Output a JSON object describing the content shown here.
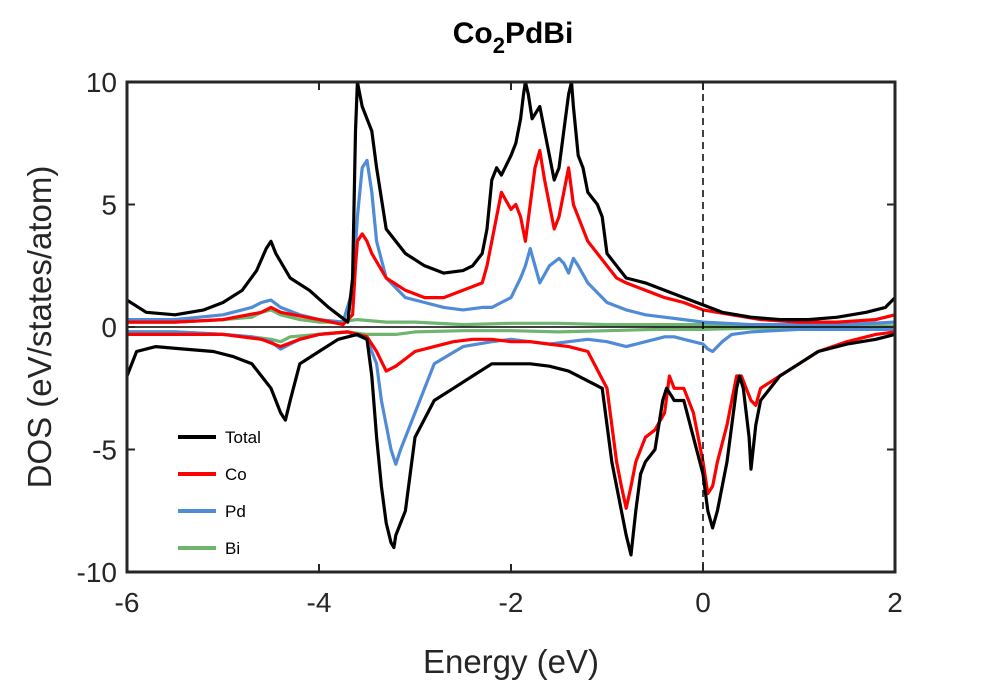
{
  "chart_data": {
    "type": "line",
    "title": {
      "main": "Co",
      "subscript": "2",
      "rest": "PdBi"
    },
    "xlabel": "Energy (eV)",
    "ylabel": "DOS (eV/states/atom)",
    "xlim": [
      -6,
      2
    ],
    "ylim": [
      -10,
      10
    ],
    "xticks": [
      -6,
      -4,
      -2,
      0,
      2
    ],
    "yticks": [
      -10,
      -5,
      0,
      5,
      10
    ],
    "xtick_labels": [
      "-6",
      "-4",
      "-2",
      "0",
      "2"
    ],
    "ytick_labels": [
      "-10",
      "-5",
      "0",
      "5",
      "10"
    ],
    "fermi_level": 0,
    "grid": false,
    "legend_position": "bottom-left",
    "series": [
      {
        "name": "Total",
        "color": "#000000",
        "up": {
          "x": [
            -6.0,
            -5.8,
            -5.5,
            -5.2,
            -5.0,
            -4.8,
            -4.65,
            -4.55,
            -4.5,
            -4.45,
            -4.3,
            -4.1,
            -3.9,
            -3.8,
            -3.7,
            -3.65,
            -3.62,
            -3.6,
            -3.55,
            -3.5,
            -3.45,
            -3.4,
            -3.3,
            -3.1,
            -2.9,
            -2.7,
            -2.5,
            -2.4,
            -2.3,
            -2.25,
            -2.2,
            -2.15,
            -2.1,
            -2.0,
            -1.95,
            -1.9,
            -1.87,
            -1.85,
            -1.82,
            -1.78,
            -1.7,
            -1.65,
            -1.6,
            -1.55,
            -1.5,
            -1.45,
            -1.4,
            -1.37,
            -1.35,
            -1.3,
            -1.25,
            -1.2,
            -1.1,
            -1.05,
            -1.0,
            -0.9,
            -0.8,
            -0.6,
            -0.4,
            -0.2,
            0.0,
            0.2,
            0.5,
            0.8,
            1.1,
            1.4,
            1.7,
            1.9,
            2.0
          ],
          "y": [
            1.1,
            0.6,
            0.5,
            0.7,
            1.0,
            1.5,
            2.3,
            3.2,
            3.5,
            3.0,
            2.0,
            1.5,
            0.8,
            0.5,
            0.2,
            2.0,
            8.0,
            10.0,
            9.0,
            8.5,
            8.0,
            6.5,
            4.0,
            3.0,
            2.5,
            2.2,
            2.3,
            2.5,
            3.0,
            4.0,
            6.0,
            6.5,
            6.2,
            7.0,
            7.5,
            8.5,
            9.5,
            10.0,
            9.5,
            8.5,
            9.0,
            8.0,
            7.0,
            6.0,
            6.5,
            8.0,
            9.5,
            10.0,
            9.0,
            7.0,
            6.5,
            5.5,
            5.0,
            4.5,
            3.0,
            2.5,
            2.0,
            1.8,
            1.5,
            1.2,
            0.9,
            0.6,
            0.4,
            0.3,
            0.3,
            0.4,
            0.6,
            0.8,
            1.2
          ]
        },
        "down": {
          "x": [
            -6.0,
            -5.9,
            -5.7,
            -5.4,
            -5.1,
            -4.9,
            -4.7,
            -4.6,
            -4.5,
            -4.45,
            -4.4,
            -4.35,
            -4.3,
            -4.2,
            -4.0,
            -3.8,
            -3.6,
            -3.5,
            -3.45,
            -3.4,
            -3.35,
            -3.3,
            -3.25,
            -3.22,
            -3.2,
            -3.15,
            -3.1,
            -3.05,
            -3.0,
            -2.8,
            -2.6,
            -2.4,
            -2.2,
            -2.0,
            -1.8,
            -1.6,
            -1.4,
            -1.2,
            -1.05,
            -1.0,
            -0.95,
            -0.9,
            -0.85,
            -0.8,
            -0.75,
            -0.7,
            -0.65,
            -0.6,
            -0.5,
            -0.42,
            -0.38,
            -0.33,
            -0.3,
            -0.2,
            -0.1,
            0.0,
            0.05,
            0.1,
            0.15,
            0.25,
            0.35,
            0.38,
            0.42,
            0.45,
            0.48,
            0.5,
            0.55,
            0.6,
            0.7,
            0.8,
            1.0,
            1.2,
            1.5,
            1.8,
            2.0
          ],
          "y": [
            -2.0,
            -1.0,
            -0.8,
            -0.9,
            -1.0,
            -1.2,
            -1.5,
            -2.0,
            -2.5,
            -3.0,
            -3.5,
            -3.8,
            -3.0,
            -1.5,
            -1.0,
            -0.5,
            -0.3,
            -0.5,
            -2.0,
            -4.5,
            -6.5,
            -8.0,
            -8.8,
            -9.0,
            -8.5,
            -8.0,
            -7.5,
            -6.0,
            -4.5,
            -3.0,
            -2.5,
            -2.0,
            -1.5,
            -1.5,
            -1.5,
            -1.6,
            -1.8,
            -2.2,
            -2.5,
            -4.0,
            -5.5,
            -6.5,
            -7.5,
            -8.5,
            -9.3,
            -7.5,
            -6.0,
            -5.5,
            -5.0,
            -3.0,
            -2.5,
            -2.8,
            -3.0,
            -3.0,
            -4.5,
            -6.0,
            -7.5,
            -8.2,
            -7.5,
            -5.5,
            -2.5,
            -2.0,
            -2.5,
            -3.5,
            -4.5,
            -5.8,
            -4.0,
            -3.0,
            -2.5,
            -2.0,
            -1.5,
            -1.0,
            -0.7,
            -0.5,
            -0.3
          ]
        }
      },
      {
        "name": "Co",
        "color": "#ff0000",
        "up": {
          "x": [
            -6.0,
            -5.5,
            -5.0,
            -4.6,
            -4.5,
            -4.4,
            -4.0,
            -3.75,
            -3.65,
            -3.62,
            -3.6,
            -3.55,
            -3.5,
            -3.45,
            -3.3,
            -3.1,
            -2.9,
            -2.7,
            -2.5,
            -2.3,
            -2.25,
            -2.2,
            -2.15,
            -2.1,
            -2.0,
            -1.95,
            -1.9,
            -1.85,
            -1.8,
            -1.75,
            -1.7,
            -1.65,
            -1.6,
            -1.55,
            -1.5,
            -1.45,
            -1.4,
            -1.35,
            -1.3,
            -1.2,
            -1.1,
            -1.0,
            -0.9,
            -0.8,
            -0.6,
            -0.4,
            -0.2,
            0.0,
            0.3,
            0.6,
            1.0,
            1.4,
            1.8,
            2.0
          ],
          "y": [
            0.2,
            0.2,
            0.3,
            0.6,
            0.8,
            0.6,
            0.3,
            0.1,
            0.5,
            2.5,
            3.5,
            3.8,
            3.5,
            3.0,
            2.0,
            1.5,
            1.2,
            1.2,
            1.5,
            1.8,
            2.5,
            3.5,
            4.5,
            5.5,
            4.8,
            5.0,
            4.5,
            3.5,
            5.0,
            6.5,
            7.2,
            6.0,
            5.0,
            4.0,
            4.5,
            5.5,
            6.5,
            5.0,
            4.5,
            3.5,
            3.0,
            2.5,
            2.0,
            1.8,
            1.5,
            1.2,
            1.0,
            0.7,
            0.5,
            0.3,
            0.2,
            0.2,
            0.3,
            0.5
          ]
        },
        "down": {
          "x": [
            -6.0,
            -5.5,
            -5.0,
            -4.6,
            -4.4,
            -4.2,
            -4.0,
            -3.7,
            -3.5,
            -3.4,
            -3.3,
            -3.2,
            -3.1,
            -3.0,
            -2.8,
            -2.6,
            -2.4,
            -2.2,
            -2.0,
            -1.8,
            -1.6,
            -1.4,
            -1.2,
            -1.0,
            -0.95,
            -0.9,
            -0.85,
            -0.8,
            -0.75,
            -0.7,
            -0.6,
            -0.5,
            -0.4,
            -0.35,
            -0.3,
            -0.2,
            -0.1,
            0.0,
            0.05,
            0.1,
            0.15,
            0.25,
            0.35,
            0.4,
            0.45,
            0.5,
            0.55,
            0.6,
            0.8,
            1.0,
            1.2,
            1.5,
            1.8,
            2.0
          ],
          "y": [
            -0.3,
            -0.3,
            -0.3,
            -0.5,
            -0.8,
            -0.5,
            -0.3,
            -0.2,
            -0.4,
            -1.0,
            -1.8,
            -1.6,
            -1.3,
            -1.0,
            -0.8,
            -0.6,
            -0.5,
            -0.5,
            -0.6,
            -0.6,
            -0.7,
            -0.8,
            -1.0,
            -2.5,
            -4.0,
            -5.5,
            -6.5,
            -7.4,
            -6.5,
            -5.5,
            -4.5,
            -4.2,
            -3.5,
            -2.0,
            -2.5,
            -2.5,
            -3.5,
            -5.5,
            -6.8,
            -6.5,
            -5.5,
            -4.0,
            -2.0,
            -2.0,
            -2.5,
            -3.0,
            -3.2,
            -2.5,
            -2.0,
            -1.5,
            -1.0,
            -0.6,
            -0.3,
            -0.2
          ]
        }
      },
      {
        "name": "Pd",
        "color": "#4f8bd6",
        "up": {
          "x": [
            -6.0,
            -5.5,
            -5.0,
            -4.7,
            -4.6,
            -4.5,
            -4.4,
            -4.2,
            -4.0,
            -3.75,
            -3.65,
            -3.6,
            -3.55,
            -3.5,
            -3.45,
            -3.4,
            -3.3,
            -3.1,
            -2.9,
            -2.7,
            -2.5,
            -2.3,
            -2.2,
            -2.1,
            -2.0,
            -1.9,
            -1.85,
            -1.8,
            -1.75,
            -1.7,
            -1.6,
            -1.5,
            -1.45,
            -1.4,
            -1.35,
            -1.3,
            -1.2,
            -1.0,
            -0.8,
            -0.6,
            -0.4,
            -0.2,
            0.0,
            0.5,
            1.0,
            1.5,
            2.0
          ],
          "y": [
            0.3,
            0.3,
            0.5,
            0.8,
            1.0,
            1.1,
            0.8,
            0.5,
            0.3,
            0.2,
            1.5,
            4.5,
            6.5,
            6.8,
            5.5,
            3.5,
            2.0,
            1.2,
            1.0,
            0.8,
            0.7,
            0.8,
            0.8,
            1.0,
            1.2,
            2.0,
            2.5,
            3.2,
            2.5,
            1.8,
            2.5,
            2.8,
            2.6,
            2.2,
            2.8,
            2.5,
            1.8,
            1.0,
            0.7,
            0.5,
            0.4,
            0.3,
            0.2,
            0.1,
            0.1,
            0.1,
            0.2
          ]
        },
        "down": {
          "x": [
            -6.0,
            -5.5,
            -5.0,
            -4.7,
            -4.5,
            -4.4,
            -4.3,
            -4.2,
            -4.0,
            -3.7,
            -3.5,
            -3.4,
            -3.35,
            -3.3,
            -3.25,
            -3.2,
            -3.15,
            -3.1,
            -3.0,
            -2.8,
            -2.5,
            -2.2,
            -2.0,
            -1.8,
            -1.6,
            -1.4,
            -1.2,
            -1.0,
            -0.8,
            -0.6,
            -0.5,
            -0.4,
            -0.3,
            -0.2,
            -0.1,
            0.0,
            0.05,
            0.1,
            0.15,
            0.2,
            0.3,
            0.5,
            1.0,
            1.5,
            2.0
          ],
          "y": [
            -0.2,
            -0.2,
            -0.3,
            -0.4,
            -0.6,
            -0.9,
            -0.7,
            -0.5,
            -0.3,
            -0.2,
            -0.5,
            -1.5,
            -3.0,
            -4.0,
            -5.0,
            -5.6,
            -5.0,
            -4.5,
            -3.5,
            -1.5,
            -0.8,
            -0.6,
            -0.5,
            -0.6,
            -0.7,
            -0.6,
            -0.5,
            -0.6,
            -0.8,
            -0.6,
            -0.5,
            -0.4,
            -0.4,
            -0.5,
            -0.6,
            -0.7,
            -0.9,
            -1.0,
            -0.8,
            -0.6,
            -0.3,
            -0.2,
            -0.1,
            -0.1,
            -0.1
          ]
        }
      },
      {
        "name": "Bi",
        "color": "#6fb56f",
        "up": {
          "x": [
            -6.0,
            -5.5,
            -5.0,
            -4.7,
            -4.6,
            -4.5,
            -4.4,
            -4.2,
            -4.0,
            -3.8,
            -3.6,
            -3.3,
            -3.0,
            -2.5,
            -2.0,
            -1.5,
            -1.0,
            -0.5,
            0.0,
            0.5,
            1.0,
            1.5,
            2.0
          ],
          "y": [
            0.2,
            0.2,
            0.3,
            0.4,
            0.6,
            0.7,
            0.5,
            0.3,
            0.2,
            0.2,
            0.3,
            0.2,
            0.2,
            0.1,
            0.15,
            0.15,
            0.1,
            0.1,
            0.1,
            0.05,
            0.05,
            0.05,
            0.05
          ]
        },
        "down": {
          "x": [
            -6.0,
            -5.5,
            -5.0,
            -4.7,
            -4.5,
            -4.4,
            -4.3,
            -4.0,
            -3.7,
            -3.5,
            -3.2,
            -3.0,
            -2.5,
            -2.0,
            -1.5,
            -1.0,
            -0.5,
            0.0,
            0.5,
            1.0,
            1.5,
            2.0
          ],
          "y": [
            -0.2,
            -0.2,
            -0.3,
            -0.4,
            -0.5,
            -0.6,
            -0.4,
            -0.3,
            -0.2,
            -0.3,
            -0.3,
            -0.2,
            -0.15,
            -0.15,
            -0.2,
            -0.15,
            -0.1,
            -0.1,
            -0.05,
            -0.05,
            -0.05,
            -0.05
          ]
        }
      }
    ]
  }
}
